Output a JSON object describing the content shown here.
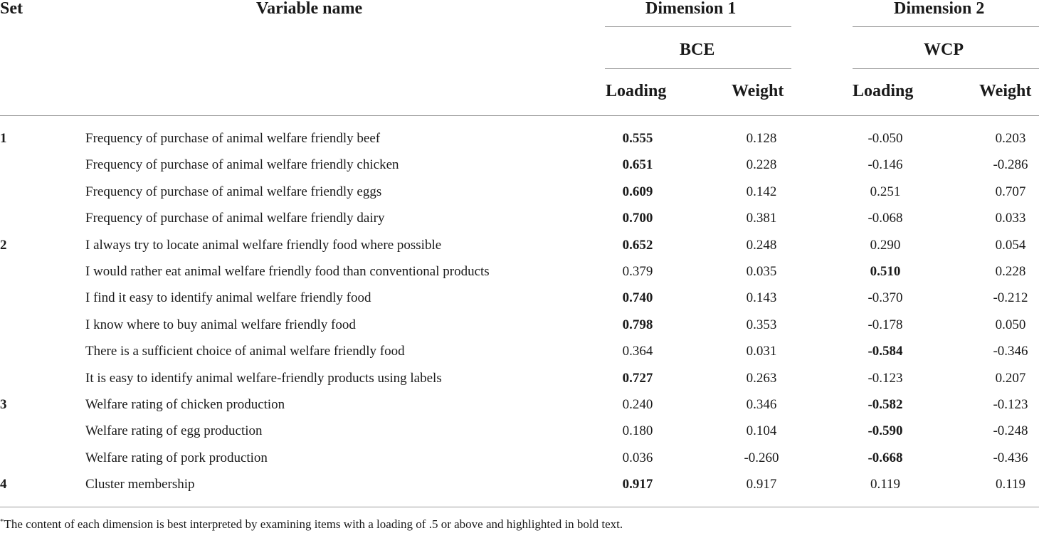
{
  "header": {
    "set": "Set",
    "variable": "Variable name",
    "dim1": "Dimension 1",
    "dim2": "Dimension 2",
    "dim1_sub": "BCE",
    "dim2_sub": "WCP",
    "loading": "Loading",
    "weight": "Weight"
  },
  "rows": [
    {
      "set": "1",
      "name": "Frequency of purchase of animal welfare friendly beef",
      "l1": "0.555",
      "w1": "0.128",
      "l2": "-0.050",
      "w2": "0.203",
      "b1": true,
      "b2": false
    },
    {
      "set": "",
      "name": "Frequency of purchase of animal welfare friendly chicken",
      "l1": "0.651",
      "w1": "0.228",
      "l2": "-0.146",
      "w2": "-0.286",
      "b1": true,
      "b2": false
    },
    {
      "set": "",
      "name": "Frequency of purchase of animal welfare friendly eggs",
      "l1": "0.609",
      "w1": "0.142",
      "l2": "0.251",
      "w2": "0.707",
      "b1": true,
      "b2": false
    },
    {
      "set": "",
      "name": "Frequency of purchase of animal welfare friendly dairy",
      "l1": "0.700",
      "w1": "0.381",
      "l2": "-0.068",
      "w2": "0.033",
      "b1": true,
      "b2": false
    },
    {
      "set": "2",
      "name": "I always try to locate animal welfare friendly food where possible",
      "l1": "0.652",
      "w1": "0.248",
      "l2": "0.290",
      "w2": "0.054",
      "b1": true,
      "b2": false
    },
    {
      "set": "",
      "name": "I would rather eat animal welfare friendly food than conventional products",
      "l1": "0.379",
      "w1": "0.035",
      "l2": "0.510",
      "w2": "0.228",
      "b1": false,
      "b2": true
    },
    {
      "set": "",
      "name": "I find it easy to identify animal welfare friendly food",
      "l1": "0.740",
      "w1": "0.143",
      "l2": "-0.370",
      "w2": "-0.212",
      "b1": true,
      "b2": false
    },
    {
      "set": "",
      "name": "I know where to buy animal welfare friendly food",
      "l1": "0.798",
      "w1": "0.353",
      "l2": "-0.178",
      "w2": "0.050",
      "b1": true,
      "b2": false
    },
    {
      "set": "",
      "name": "There is a sufficient choice of animal welfare friendly food",
      "l1": "0.364",
      "w1": "0.031",
      "l2": "-0.584",
      "w2": "-0.346",
      "b1": false,
      "b2": true
    },
    {
      "set": "",
      "name": "It is easy to identify animal welfare-friendly products using labels",
      "l1": "0.727",
      "w1": "0.263",
      "l2": "-0.123",
      "w2": "0.207",
      "b1": true,
      "b2": false
    },
    {
      "set": "3",
      "name": "Welfare rating of chicken production",
      "l1": "0.240",
      "w1": "0.346",
      "l2": "-0.582",
      "w2": "-0.123",
      "b1": false,
      "b2": true
    },
    {
      "set": "",
      "name": "Welfare rating of egg production",
      "l1": "0.180",
      "w1": "0.104",
      "l2": "-0.590",
      "w2": "-0.248",
      "b1": false,
      "b2": true
    },
    {
      "set": "",
      "name": "Welfare rating of pork production",
      "l1": "0.036",
      "w1": "-0.260",
      "l2": "-0.668",
      "w2": "-0.436",
      "b1": false,
      "b2": true
    },
    {
      "set": "4",
      "name": "Cluster membership",
      "l1": "0.917",
      "w1": "0.917",
      "l2": "0.119",
      "w2": "0.119",
      "b1": true,
      "b2": false
    }
  ],
  "footnote": {
    "mark": "*",
    "text": "The content of each dimension is best interpreted by examining items with a loading of .5 or above and highlighted in bold text."
  }
}
